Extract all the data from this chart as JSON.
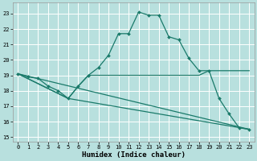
{
  "xlabel": "Humidex (Indice chaleur)",
  "xlim": [
    -0.5,
    23.5
  ],
  "ylim": [
    14.7,
    23.7
  ],
  "yticks": [
    15,
    16,
    17,
    18,
    19,
    20,
    21,
    22,
    23
  ],
  "xticks": [
    0,
    1,
    2,
    3,
    4,
    5,
    6,
    7,
    8,
    9,
    10,
    11,
    12,
    13,
    14,
    15,
    16,
    17,
    18,
    19,
    20,
    21,
    22,
    23
  ],
  "bg_color": "#b8e0de",
  "grid_color": "#ffffff",
  "line_color": "#1a7a6a",
  "curve1_x": [
    0,
    1,
    2,
    3,
    4,
    5,
    6,
    7,
    8,
    9,
    10,
    11,
    12,
    13,
    14,
    15,
    16,
    17,
    18,
    19,
    20,
    21,
    22,
    23
  ],
  "curve1_y": [
    19.1,
    18.9,
    18.8,
    18.3,
    18.0,
    17.5,
    18.3,
    19.0,
    19.5,
    20.3,
    21.7,
    21.7,
    23.1,
    22.9,
    22.9,
    21.5,
    21.3,
    20.1,
    19.3,
    19.3,
    17.5,
    16.5,
    15.6,
    15.5
  ],
  "curve2_x": [
    0,
    5,
    6,
    7,
    8,
    9,
    10,
    11,
    12,
    13,
    14,
    15,
    16,
    17,
    18,
    19,
    20,
    21,
    22,
    23
  ],
  "curve2_y": [
    19.1,
    17.5,
    18.3,
    19.0,
    19.0,
    19.0,
    19.0,
    19.0,
    19.0,
    19.0,
    19.0,
    19.0,
    19.0,
    19.0,
    19.0,
    19.3,
    19.3,
    19.3,
    19.3,
    19.3
  ],
  "curve3_x": [
    0,
    23
  ],
  "curve3_y": [
    19.1,
    15.5
  ],
  "curve4_x": [
    0,
    5,
    23
  ],
  "curve4_y": [
    19.1,
    17.5,
    15.5
  ]
}
